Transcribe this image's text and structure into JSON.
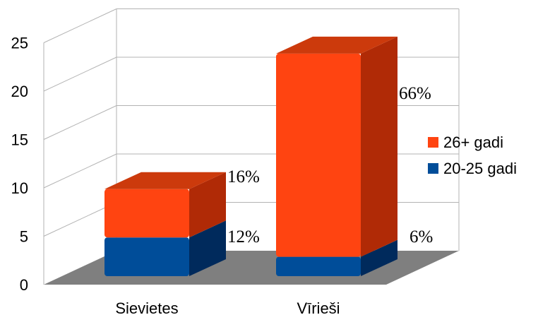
{
  "chart_data": {
    "type": "bar",
    "stacked": true,
    "three_d": true,
    "categories": [
      "Sievietes",
      "Vīrieši"
    ],
    "series": [
      {
        "name": "20-25 gadi",
        "values": [
          4,
          2
        ],
        "labels": [
          "12%",
          "6%"
        ],
        "color": "#004d99",
        "side_color": "#002a5c",
        "top_color": "#0a3f80"
      },
      {
        "name": "26+ gadi",
        "values": [
          5,
          21
        ],
        "labels": [
          "16%",
          "66%"
        ],
        "color": "#ff4411",
        "side_color": "#b02a06",
        "top_color": "#cc3a0c"
      }
    ],
    "y_ticks": [
      "0",
      "5",
      "10",
      "15",
      "20",
      "25"
    ],
    "ylim": [
      0,
      25
    ],
    "grid": true,
    "legend_position": "right",
    "floor_color": "#7f7f7f"
  }
}
